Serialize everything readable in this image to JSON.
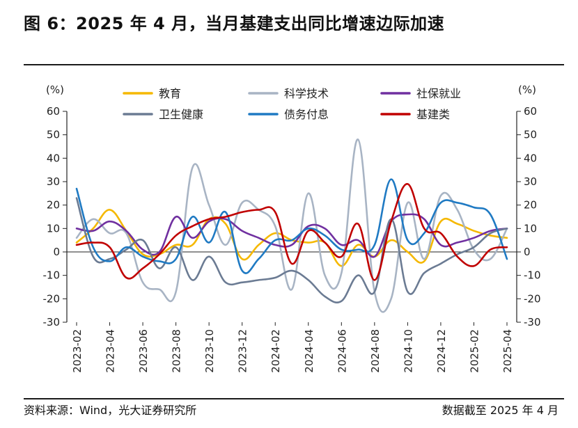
{
  "title": "图 6：2025 年 4 月，当月基建支出同比增速边际加速",
  "source": "资料来源：Wind，光大证券研究所",
  "cutoff": "数据截至 2025 年 4 月",
  "chart_data": {
    "type": "line",
    "unit_left": "(%)",
    "unit_right": "(%)",
    "ylim": [
      -30,
      60
    ],
    "yticks": [
      -30,
      -20,
      -10,
      0,
      10,
      20,
      30,
      40,
      50,
      60
    ],
    "x": [
      "2023-02",
      "2023-03",
      "2023-04",
      "2023-05",
      "2023-06",
      "2023-07",
      "2023-08",
      "2023-09",
      "2023-10",
      "2023-11",
      "2023-12",
      "2024-01",
      "2024-02",
      "2024-03",
      "2024-04",
      "2024-05",
      "2024-06",
      "2024-07",
      "2024-08",
      "2024-09",
      "2024-10",
      "2024-11",
      "2024-12",
      "2025-01",
      "2025-02",
      "2025-03",
      "2025-04"
    ],
    "xtick_labels": [
      "2023-02",
      "2023-04",
      "2023-06",
      "2023-08",
      "2023-10",
      "2023-12",
      "2024-02",
      "2024-04",
      "2024-06",
      "2024-08",
      "2024-10",
      "2024-12",
      "2025-02",
      "2025-04"
    ],
    "legend_rows": [
      [
        "教育",
        "科学技术",
        "社保就业"
      ],
      [
        "卫生健康",
        "债务付息",
        "基建类"
      ]
    ],
    "series": [
      {
        "name": "教育",
        "color": "#F5B800",
        "values": [
          4,
          10,
          18,
          9,
          -1,
          -1,
          3,
          3,
          14,
          12,
          -3,
          3,
          8,
          5,
          4,
          4,
          -6,
          3,
          -2,
          5,
          0,
          -4,
          13,
          12,
          9,
          7,
          6
        ]
      },
      {
        "name": "科学技术",
        "color": "#A8B4C4",
        "values": [
          6,
          14,
          8,
          8,
          -13,
          -16,
          -17,
          36,
          20,
          3,
          21,
          18,
          11,
          -16,
          25,
          -10,
          -9,
          48,
          -17,
          -20,
          21,
          -3,
          24,
          18,
          1,
          -3,
          10
        ]
      },
      {
        "name": "社保就业",
        "color": "#7030A0",
        "values": [
          10,
          9,
          13,
          9,
          1,
          0,
          15,
          6,
          13,
          14,
          9,
          6,
          3,
          3,
          11,
          10,
          3,
          5,
          -2,
          13,
          16,
          14,
          3,
          4,
          6,
          9,
          10
        ]
      },
      {
        "name": "卫生健康",
        "color": "#6B7B93",
        "values": [
          23,
          -2,
          -3,
          1,
          5,
          -7,
          2,
          -12,
          -2,
          -13,
          -13,
          -12,
          -11,
          -8,
          -12,
          -19,
          -21,
          -10,
          -17,
          14,
          -17,
          -9,
          -5,
          -1,
          2,
          8,
          10
        ]
      },
      {
        "name": "债务付息",
        "color": "#1F7AC3",
        "values": [
          27,
          2,
          -4,
          2,
          -2,
          -4,
          -3,
          15,
          4,
          17,
          -8,
          -3,
          5,
          5,
          10,
          7,
          1,
          1,
          3,
          31,
          5,
          8,
          21,
          21,
          19,
          16,
          -3
        ]
      },
      {
        "name": "基建类",
        "color": "#C00000",
        "values": [
          3,
          4,
          2,
          -11,
          -7,
          -1,
          7,
          11,
          14,
          15,
          17,
          18,
          17,
          -5,
          9,
          4,
          -2,
          12,
          -12,
          13,
          29,
          10,
          8,
          -2,
          -6,
          1,
          2
        ]
      }
    ]
  }
}
